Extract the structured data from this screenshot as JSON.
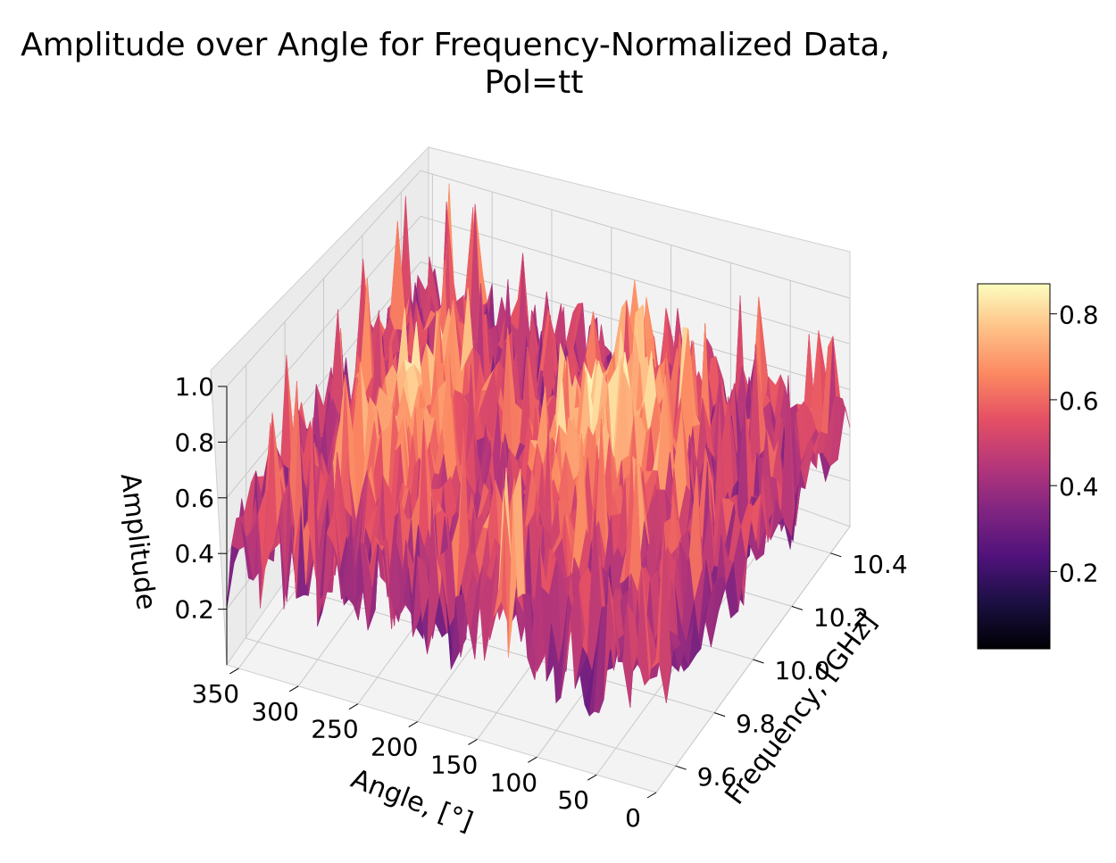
{
  "chart_data": {
    "type": "surface3d",
    "title_line1": "Amplitude over Angle for Frequency-Normalized Data,",
    "title_line2": "Pol=tt",
    "xlabel": "Angle, [°]",
    "ylabel": "Frequency, [GHz]",
    "zlabel": "Amplitude",
    "colormap": "magma",
    "x_ticks": [
      "350",
      "300",
      "250",
      "200",
      "150",
      "100",
      "50",
      "0"
    ],
    "y_ticks": [
      "9.6",
      "9.8",
      "10.0",
      "10.2",
      "10.4"
    ],
    "z_ticks": [
      "0.2",
      "0.4",
      "0.6",
      "0.8",
      "1.0"
    ],
    "colorbar_ticks": [
      "0.2",
      "0.4",
      "0.6",
      "0.8"
    ],
    "xlim": [
      0,
      360
    ],
    "ylim": [
      9.5,
      10.5
    ],
    "zlim": [
      0,
      1.0
    ],
    "colorbar_range": [
      0.02,
      0.87
    ],
    "grid": true
  }
}
